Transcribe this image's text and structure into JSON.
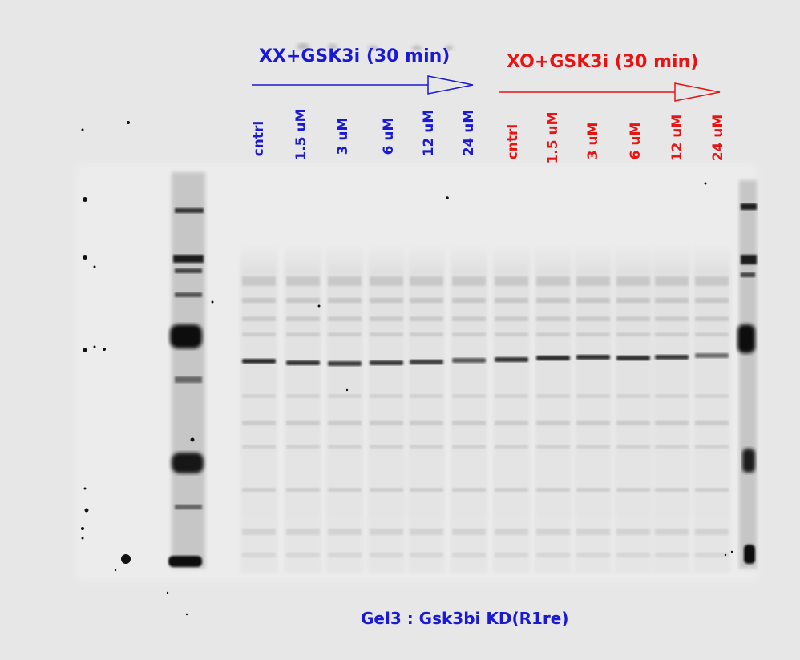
{
  "image": {
    "type": "western blot gel image",
    "background_color": "#e7e7e7",
    "band_color": "#1e1e1e"
  },
  "groups": [
    {
      "id": "xx",
      "title": "XX+GSK3i (30 min)",
      "color": "#1a1ad6",
      "lanes": [
        "cntrl",
        "1.5 uM",
        "3 uM",
        "6 uM",
        "12 uM",
        "24 uM"
      ]
    },
    {
      "id": "xo",
      "title": "XO+GSK3i (30 min)",
      "color": "#e81414",
      "lanes": [
        "cntrl",
        "1.5 uM",
        "3 uM",
        "6 uM",
        "12 uM",
        "24 uM"
      ]
    }
  ],
  "caption": {
    "text": "Gel3 : Gsk3bi KD(R1re)",
    "color": "#1a1ad6"
  }
}
